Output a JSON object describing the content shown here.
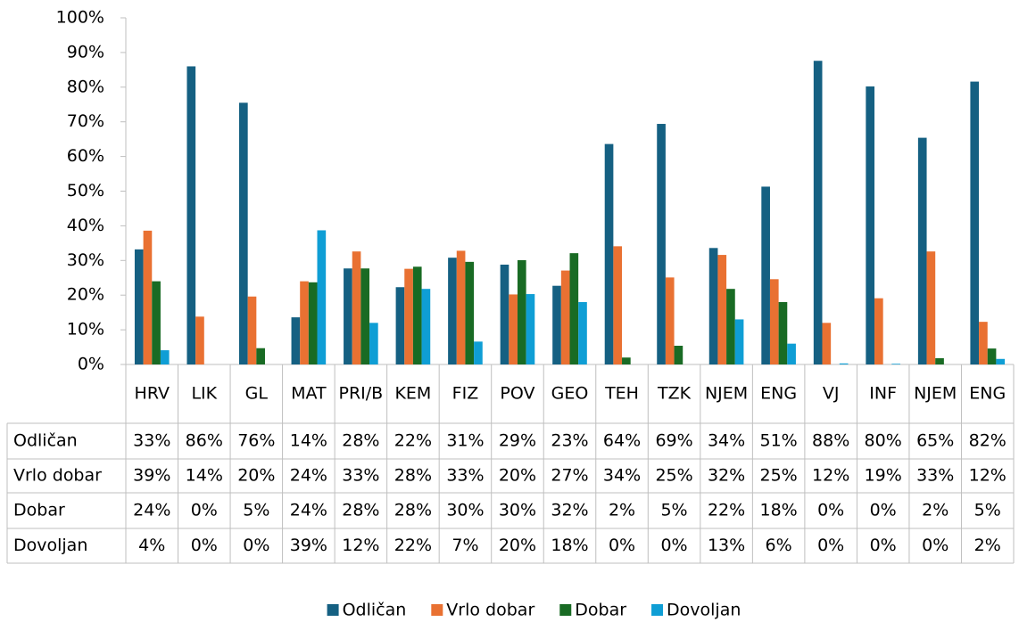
{
  "chart_data": {
    "type": "bar",
    "categories": [
      "HRV",
      "LIK",
      "GL",
      "MAT",
      "PRI/B",
      "KEM",
      "FIZ",
      "POV",
      "GEO",
      "TEH",
      "TZK",
      "NJEM",
      "ENG",
      "VJ",
      "INF",
      "NJEM",
      "ENG"
    ],
    "series": [
      {
        "name": "Odličan",
        "color": "#156082",
        "values": [
          33.2,
          86,
          75.5,
          13.6,
          27.7,
          22.3,
          30.8,
          28.8,
          22.7,
          63.6,
          69.4,
          33.6,
          51.3,
          87.6,
          80.2,
          65.4,
          81.6
        ],
        "value_labels": [
          "33%",
          "86%",
          "76%",
          "14%",
          "28%",
          "22%",
          "31%",
          "29%",
          "23%",
          "64%",
          "69%",
          "34%",
          "51%",
          "88%",
          "80%",
          "65%",
          "82%"
        ]
      },
      {
        "name": "Vrlo dobar",
        "color": "#e97132",
        "values": [
          38.6,
          13.8,
          19.6,
          24,
          32.6,
          27.6,
          32.8,
          20.2,
          27.1,
          34.1,
          25.1,
          31.6,
          24.6,
          12,
          19.1,
          32.6,
          12.3
        ],
        "value_labels": [
          "39%",
          "14%",
          "20%",
          "24%",
          "33%",
          "28%",
          "33%",
          "20%",
          "27%",
          "34%",
          "25%",
          "32%",
          "25%",
          "12%",
          "19%",
          "33%",
          "12%"
        ]
      },
      {
        "name": "Dobar",
        "color": "#196b24",
        "values": [
          24,
          0,
          4.7,
          23.7,
          27.7,
          28.2,
          29.6,
          30.1,
          32.1,
          2,
          5.4,
          21.8,
          18,
          0,
          0,
          1.8,
          4.6
        ],
        "value_labels": [
          "24%",
          "0%",
          "5%",
          "24%",
          "28%",
          "28%",
          "30%",
          "30%",
          "32%",
          "2%",
          "5%",
          "22%",
          "18%",
          "0%",
          "0%",
          "2%",
          "5%"
        ]
      },
      {
        "name": "Dovoljan",
        "color": "#0f9ed5",
        "values": [
          4.1,
          0,
          0,
          38.7,
          12,
          21.8,
          6.6,
          20.3,
          18,
          0,
          0,
          13,
          6,
          0.3,
          0.2,
          0,
          1.6
        ],
        "value_labels": [
          "4%",
          "0%",
          "0%",
          "39%",
          "12%",
          "22%",
          "7%",
          "20%",
          "18%",
          "0%",
          "0%",
          "13%",
          "6%",
          "0%",
          "0%",
          "0%",
          "2%"
        ]
      }
    ],
    "ylim": [
      0,
      100
    ],
    "yticks": [
      {
        "value": 0,
        "label": "0%"
      },
      {
        "value": 10,
        "label": "10%"
      },
      {
        "value": 20,
        "label": "20%"
      },
      {
        "value": 30,
        "label": "30%"
      },
      {
        "value": 40,
        "label": "40%"
      },
      {
        "value": 50,
        "label": "50%"
      },
      {
        "value": 60,
        "label": "60%"
      },
      {
        "value": 70,
        "label": "70%"
      },
      {
        "value": 80,
        "label": "80%"
      },
      {
        "value": 90,
        "label": "90%"
      },
      {
        "value": 100,
        "label": "100%"
      }
    ],
    "legend": "bottom"
  }
}
